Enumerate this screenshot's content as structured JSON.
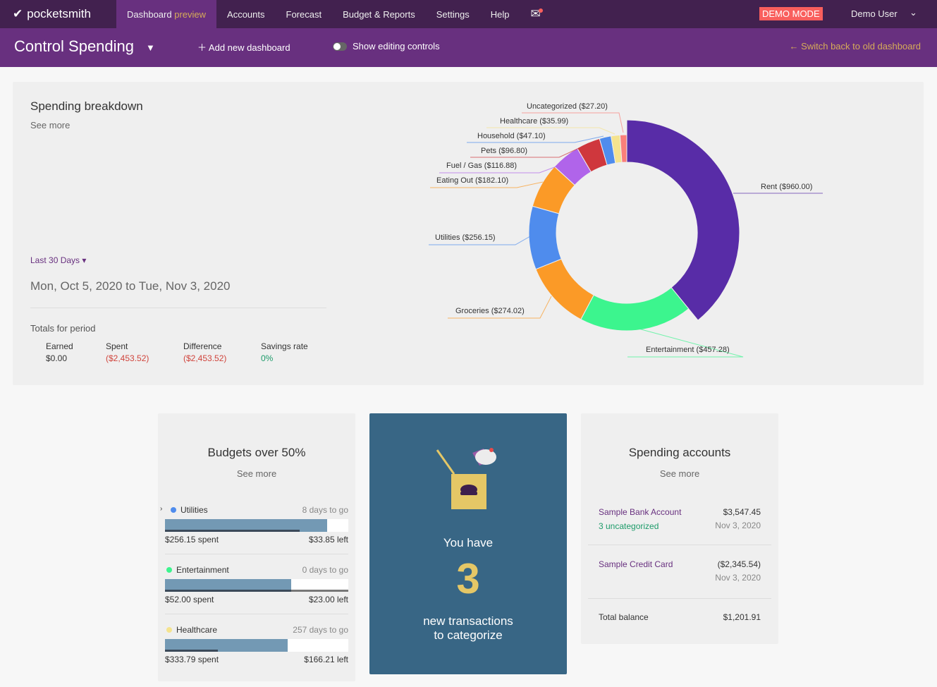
{
  "nav": {
    "brand": "pocketsmith",
    "items": [
      {
        "label": "Dashboard",
        "suffix": "preview"
      },
      {
        "label": "Accounts"
      },
      {
        "label": "Forecast"
      },
      {
        "label": "Budget & Reports"
      },
      {
        "label": "Settings"
      },
      {
        "label": "Help"
      }
    ],
    "demo_badge": "DEMO MODE",
    "user": "Demo User"
  },
  "subbar": {
    "title": "Control Spending",
    "add": "Add new dashboard",
    "show_editing": "Show editing controls",
    "switch_back": "Switch back to old dashboard"
  },
  "spending": {
    "title": "Spending breakdown",
    "see_more": "See more",
    "period_select": "Last 30 Days",
    "date_range": "Mon, Oct 5, 2020 to Tue, Nov 3, 2020",
    "totals_label": "Totals for period",
    "totals": [
      {
        "label": "Earned",
        "value": "$0.00"
      },
      {
        "label": "Spent",
        "value": "($2,453.52)"
      },
      {
        "label": "Difference",
        "value": "($2,453.52)"
      },
      {
        "label": "Savings rate",
        "value": "0%"
      }
    ]
  },
  "chart_data": {
    "type": "pie",
    "donut": true,
    "categories": [
      "Rent",
      "Entertainment",
      "Groceries",
      "Utilities",
      "Eating Out",
      "Fuel / Gas",
      "Pets",
      "Household",
      "Healthcare",
      "Uncategorized"
    ],
    "values": [
      960.0,
      457.28,
      274.02,
      256.15,
      182.1,
      116.88,
      96.8,
      47.1,
      35.99,
      27.2
    ],
    "labels": [
      "Rent ($960.00)",
      "Entertainment ($457.28)",
      "Groceries ($274.02)",
      "Utilities ($256.15)",
      "Eating Out ($182.10)",
      "Fuel / Gas ($116.88)",
      "Pets ($96.80)",
      "Household ($47.10)",
      "Healthcare ($35.99)",
      "Uncategorized ($27.20)"
    ],
    "colors": [
      "#582ca7",
      "#3cf58e",
      "#fb9a27",
      "#4f8ced",
      "#fb9a27",
      "#b064ea",
      "#cf373d",
      "#4f8ced",
      "#f5e38e",
      "#fa7f7a"
    ],
    "highlighted": "Rent"
  },
  "budgets": {
    "title": "Budgets over 50%",
    "see_more": "See more",
    "items": [
      {
        "name": "Utilities",
        "color": "#4f8ced",
        "days": "8 days to go",
        "spent": "$256.15 spent",
        "left": "$33.85 left",
        "fill": 0.885,
        "time": 0.735
      },
      {
        "name": "Entertainment",
        "color": "#3cf58e",
        "days": "0 days to go",
        "spent": "$52.00 spent",
        "left": "$23.00 left",
        "fill": 0.69,
        "time": 1.0
      },
      {
        "name": "Healthcare",
        "color": "#f5e38e",
        "days": "257 days to go",
        "spent": "$333.79 spent",
        "left": "$166.21 left",
        "fill": 0.67,
        "time": 0.29
      }
    ]
  },
  "transactions": {
    "line1": "You have",
    "count": "3",
    "line2": "new transactions",
    "line3": "to categorize"
  },
  "accounts": {
    "title": "Spending accounts",
    "see_more": "See more",
    "items": [
      {
        "name": "Sample Bank Account",
        "sub": "3 uncategorized",
        "amount": "$3,547.45",
        "date": "Nov 3, 2020"
      },
      {
        "name": "Sample Credit Card",
        "sub": "",
        "amount": "($2,345.54)",
        "date": "Nov 3, 2020"
      }
    ],
    "total_label": "Total balance",
    "total": "$1,201.91"
  }
}
